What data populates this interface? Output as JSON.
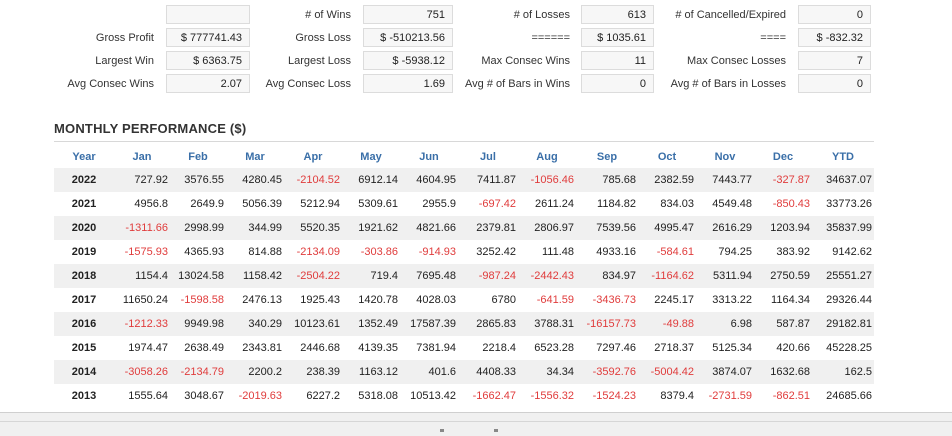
{
  "stats": {
    "row1": {
      "blank_value": "",
      "wins_label": "# of Wins",
      "wins_value": "751",
      "losses_label": "# of Losses",
      "losses_value": "613",
      "cancelled_label": "# of Cancelled/Expired",
      "cancelled_value": "0"
    },
    "row2": {
      "gross_profit_label": "Gross Profit",
      "gross_profit_value": "$ 777741.43",
      "gross_loss_label": "Gross Loss",
      "gross_loss_value": "$ -510213.56",
      "col3_label": "======",
      "col3_value": "$ 1035.61",
      "col4_label": "====",
      "col4_value": "$ -832.32"
    },
    "row3": {
      "largest_win_label": "Largest Win",
      "largest_win_value": "$ 6363.75",
      "largest_loss_label": "Largest Loss",
      "largest_loss_value": "$ -5938.12",
      "max_consec_wins_label": "Max Consec Wins",
      "max_consec_wins_value": "11",
      "max_consec_losses_label": "Max Consec Losses",
      "max_consec_losses_value": "7"
    },
    "row4": {
      "avg_consec_wins_label": "Avg Consec Wins",
      "avg_consec_wins_value": "2.07",
      "avg_consec_loss_label": "Avg Consec Loss",
      "avg_consec_loss_value": "1.69",
      "avg_bars_wins_label": "Avg # of Bars in Wins",
      "avg_bars_wins_value": "0",
      "avg_bars_losses_label": "Avg # of Bars in Losses",
      "avg_bars_losses_value": "0"
    }
  },
  "monthly": {
    "title": "MONTHLY PERFORMANCE ($)",
    "columns": [
      "Year",
      "Jan",
      "Feb",
      "Mar",
      "Apr",
      "May",
      "Jun",
      "Jul",
      "Aug",
      "Sep",
      "Oct",
      "Nov",
      "Dec",
      "YTD"
    ],
    "rows": [
      [
        "2022",
        "727.92",
        "3576.55",
        "4280.45",
        "-2104.52",
        "6912.14",
        "4604.95",
        "7411.87",
        "-1056.46",
        "785.68",
        "2382.59",
        "7443.77",
        "-327.87",
        "34637.07"
      ],
      [
        "2021",
        "4956.8",
        "2649.9",
        "5056.39",
        "5212.94",
        "5309.61",
        "2955.9",
        "-697.42",
        "2611.24",
        "1184.82",
        "834.03",
        "4549.48",
        "-850.43",
        "33773.26"
      ],
      [
        "2020",
        "-1311.66",
        "2998.99",
        "344.99",
        "5520.35",
        "1921.62",
        "4821.66",
        "2379.81",
        "2806.97",
        "7539.56",
        "4995.47",
        "2616.29",
        "1203.94",
        "35837.99"
      ],
      [
        "2019",
        "-1575.93",
        "4365.93",
        "814.88",
        "-2134.09",
        "-303.86",
        "-914.93",
        "3252.42",
        "111.48",
        "4933.16",
        "-584.61",
        "794.25",
        "383.92",
        "9142.62"
      ],
      [
        "2018",
        "1154.4",
        "13024.58",
        "1158.42",
        "-2504.22",
        "719.4",
        "7695.48",
        "-987.24",
        "-2442.43",
        "834.97",
        "-1164.62",
        "5311.94",
        "2750.59",
        "25551.27"
      ],
      [
        "2017",
        "11650.24",
        "-1598.58",
        "2476.13",
        "1925.43",
        "1420.78",
        "4028.03",
        "6780",
        "-641.59",
        "-3436.73",
        "2245.17",
        "3313.22",
        "1164.34",
        "29326.44"
      ],
      [
        "2016",
        "-1212.33",
        "9949.98",
        "340.29",
        "10123.61",
        "1352.49",
        "17587.39",
        "2865.83",
        "3788.31",
        "-16157.73",
        "-49.88",
        "6.98",
        "587.87",
        "29182.81"
      ],
      [
        "2015",
        "1974.47",
        "2638.49",
        "2343.81",
        "2446.68",
        "4139.35",
        "7381.94",
        "2218.4",
        "6523.28",
        "7297.46",
        "2718.37",
        "5125.34",
        "420.66",
        "45228.25"
      ],
      [
        "2014",
        "-3058.26",
        "-2134.79",
        "2200.2",
        "238.39",
        "1163.12",
        "401.6",
        "4408.33",
        "34.34",
        "-3592.76",
        "-5004.42",
        "3874.07",
        "1632.68",
        "162.5"
      ],
      [
        "2013",
        "1555.64",
        "3048.67",
        "-2019.63",
        "6227.2",
        "5318.08",
        "10513.42",
        "-1662.47",
        "-1556.32",
        "-1524.23",
        "8379.4",
        "-2731.59",
        "-862.51",
        "24685.66"
      ]
    ]
  }
}
